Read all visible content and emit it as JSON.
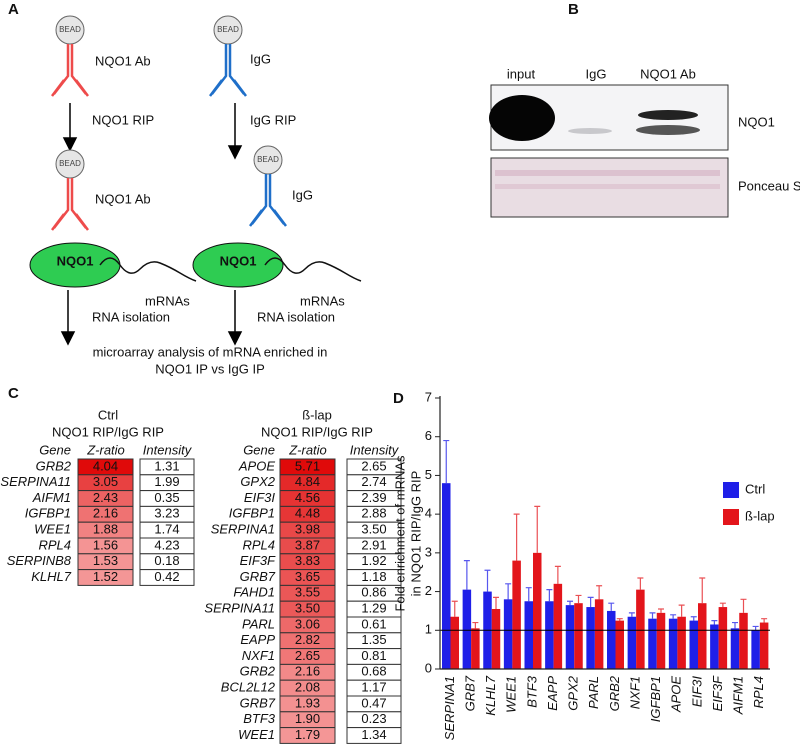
{
  "panel_a": {
    "label": "A",
    "left": {
      "bead_top": "BEAD",
      "antibody_top": "NQO1 Ab",
      "step": "NQO1 RIP",
      "bead_bottom": "BEAD",
      "antibody_bottom": "NQO1 Ab",
      "protein": "NQO1",
      "rna": "mRNAs",
      "isolation": "RNA isolation"
    },
    "right": {
      "bead_top": "BEAD",
      "antibody_top": "IgG",
      "step": "IgG RIP",
      "bead_bottom": "BEAD",
      "antibody_bottom": "IgG",
      "protein": "NQO1",
      "rna": "mRNAs",
      "isolation": "RNA isolation"
    },
    "result_lines": [
      "microarray analysis of mRNA enriched in",
      "NQO1 IP vs IgG IP"
    ]
  },
  "panel_b": {
    "label": "B",
    "lanes": [
      "input",
      "IgG",
      "NQO1 Ab"
    ],
    "blots": [
      "NQO1",
      "Ponceau S"
    ]
  },
  "panel_c": {
    "label": "C",
    "tables": [
      {
        "condition": "Ctrl",
        "comparison": "NQO1 RIP/IgG RIP",
        "columns": [
          "Gene",
          "Z-ratio",
          "Intensity"
        ],
        "rows": [
          [
            "GRB2",
            "4.04",
            "1.31"
          ],
          [
            "SERPINA11",
            "3.05",
            "1.99"
          ],
          [
            "AIFM1",
            "2.43",
            "0.35"
          ],
          [
            "IGFBP1",
            "2.16",
            "3.23"
          ],
          [
            "WEE1",
            "1.88",
            "1.74"
          ],
          [
            "RPL4",
            "1.56",
            "4.23"
          ],
          [
            "SERPINB8",
            "1.53",
            "0.18"
          ],
          [
            "KLHL7",
            "1.52",
            "0.42"
          ]
        ]
      },
      {
        "condition": "ß-lap",
        "comparison": "NQO1 RIP/IgG RIP",
        "columns": [
          "Gene",
          "Z-ratio",
          "Intensity"
        ],
        "rows": [
          [
            "APOE",
            "5.71",
            "2.65"
          ],
          [
            "GPX2",
            "4.84",
            "2.74"
          ],
          [
            "EIF3I",
            "4.56",
            "2.39"
          ],
          [
            "IGFBP1",
            "4.48",
            "2.88"
          ],
          [
            "SERPINA1",
            "3.98",
            "3.50"
          ],
          [
            "RPL4",
            "3.87",
            "2.91"
          ],
          [
            "EIF3F",
            "3.83",
            "1.92"
          ],
          [
            "GRB7",
            "3.65",
            "1.18"
          ],
          [
            "FAHD1",
            "3.55",
            "0.86"
          ],
          [
            "SERPINA11",
            "3.50",
            "1.29"
          ],
          [
            "PARL",
            "3.06",
            "0.61"
          ],
          [
            "EAPP",
            "2.82",
            "1.35"
          ],
          [
            "NXF1",
            "2.65",
            "0.81"
          ],
          [
            "GRB2",
            "2.16",
            "0.68"
          ],
          [
            "BCL2L12",
            "2.08",
            "1.17"
          ],
          [
            "GRB7",
            "1.93",
            "0.47"
          ],
          [
            "BTF3",
            "1.90",
            "0.23"
          ],
          [
            "WEE1",
            "1.79",
            "1.34"
          ]
        ]
      }
    ]
  },
  "chart_data": {
    "type": "bar",
    "panel_label": "D",
    "ylabel_lines": [
      "Fold enrichment of mRNAs",
      "in NQO1 RIP/IgG RIP"
    ],
    "categories": [
      "SERPINA1",
      "GRB7",
      "KLHL7",
      "WEE1",
      "BTF3",
      "EAPP",
      "GPX2",
      "PARL",
      "GRB2",
      "NXF1",
      "IGFBP1",
      "APOE",
      "EIF3I",
      "EIF3F",
      "AIFM1",
      "RPL4"
    ],
    "series": [
      {
        "name": "Ctrl",
        "color": "#1f1fe8",
        "values": [
          4.8,
          2.05,
          2.0,
          1.8,
          1.75,
          1.75,
          1.65,
          1.6,
          1.5,
          1.35,
          1.3,
          1.3,
          1.25,
          1.15,
          1.05,
          1.0
        ],
        "errors": [
          1.1,
          0.75,
          0.55,
          0.4,
          0.35,
          0.3,
          0.1,
          0.25,
          0.2,
          0.1,
          0.15,
          0.1,
          0.1,
          0.1,
          0.15,
          0.1
        ]
      },
      {
        "name": "ß-lap",
        "color": "#e3151b",
        "values": [
          1.35,
          1.05,
          1.55,
          2.8,
          3.0,
          2.2,
          1.7,
          1.8,
          1.25,
          2.05,
          1.45,
          1.35,
          1.7,
          1.6,
          1.45,
          1.2
        ],
        "errors": [
          0.4,
          0.15,
          0.3,
          1.2,
          1.2,
          0.45,
          0.2,
          0.35,
          0.05,
          0.3,
          0.1,
          0.3,
          0.65,
          0.1,
          0.35,
          0.1
        ]
      }
    ],
    "ylim": [
      0,
      7
    ],
    "yticks": [
      0,
      1,
      2,
      3,
      4,
      5,
      6,
      7
    ],
    "reference_line": 1,
    "legend": "right"
  }
}
